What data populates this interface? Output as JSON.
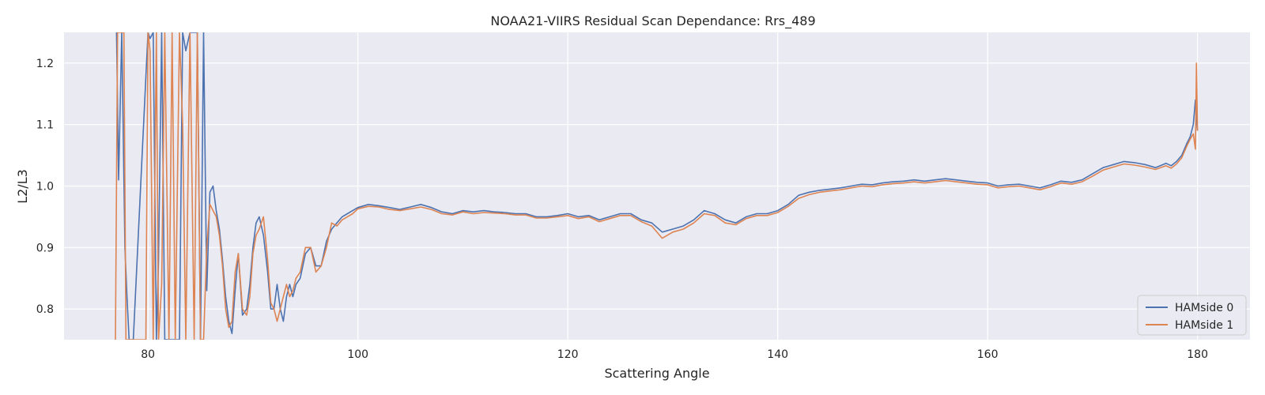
{
  "chart_data": {
    "type": "line",
    "title": "NOAA21-VIIRS Residual Scan Dependance: Rrs_489",
    "xlabel": "Scattering Angle",
    "ylabel": "L2/L3",
    "xlim": [
      72,
      185
    ],
    "ylim": [
      0.75,
      1.25
    ],
    "xticks": [
      80,
      100,
      120,
      140,
      160,
      180
    ],
    "yticks": [
      0.8,
      0.9,
      1.0,
      1.1,
      1.2
    ],
    "grid": true,
    "legend_position": "lower-right",
    "colors": {
      "plot_bg": "#eaeaf2",
      "grid": "#ffffff"
    },
    "series": [
      {
        "name": "HAMside 0",
        "color": "#4c72b0",
        "x": [
          77.0,
          77.2,
          77.5,
          77.8,
          78.0,
          78.2,
          78.4,
          78.6,
          80.0,
          80.2,
          80.5,
          80.8,
          81.0,
          81.3,
          81.6,
          82.0,
          82.3,
          82.6,
          83.0,
          83.3,
          83.6,
          84.0,
          84.4,
          84.7,
          85.0,
          85.3,
          85.6,
          85.9,
          86.2,
          86.5,
          86.8,
          87.1,
          87.4,
          87.7,
          88.0,
          88.3,
          88.6,
          89.0,
          89.4,
          89.7,
          90.0,
          90.3,
          90.6,
          91.0,
          91.4,
          91.7,
          92.0,
          92.3,
          92.6,
          92.9,
          93.2,
          93.5,
          93.8,
          94.1,
          94.5,
          95.0,
          95.5,
          96.0,
          96.5,
          97.0,
          97.5,
          98.0,
          98.5,
          99.0,
          99.5,
          100.0,
          101.0,
          102.0,
          103.0,
          104.0,
          105.0,
          106.0,
          107.0,
          108.0,
          109.0,
          110.0,
          111.0,
          112.0,
          113.0,
          114.0,
          115.0,
          116.0,
          117.0,
          118.0,
          119.0,
          120.0,
          121.0,
          122.0,
          123.0,
          124.0,
          125.0,
          126.0,
          127.0,
          128.0,
          129.0,
          130.0,
          131.0,
          132.0,
          133.0,
          134.0,
          135.0,
          136.0,
          137.0,
          138.0,
          139.0,
          140.0,
          141.0,
          142.0,
          143.0,
          144.0,
          145.0,
          146.0,
          147.0,
          148.0,
          149.0,
          150.0,
          151.0,
          152.0,
          153.0,
          154.0,
          155.0,
          156.0,
          157.0,
          158.0,
          159.0,
          160.0,
          161.0,
          162.0,
          163.0,
          164.0,
          165.0,
          166.0,
          167.0,
          168.0,
          169.0,
          170.0,
          171.0,
          172.0,
          173.0,
          174.0,
          175.0,
          176.0,
          177.0,
          177.5,
          178.0,
          178.5,
          179.0,
          179.3,
          179.6,
          179.8,
          179.9,
          180.0
        ],
        "y": [
          1.25,
          1.01,
          1.25,
          0.9,
          0.82,
          0.75,
          0.75,
          0.75,
          1.25,
          1.24,
          1.25,
          0.75,
          0.88,
          1.25,
          0.75,
          0.75,
          0.75,
          0.75,
          0.75,
          1.25,
          1.22,
          1.25,
          1.25,
          1.25,
          0.75,
          1.25,
          0.83,
          0.99,
          1.0,
          0.96,
          0.93,
          0.88,
          0.82,
          0.78,
          0.76,
          0.83,
          0.89,
          0.79,
          0.8,
          0.84,
          0.9,
          0.94,
          0.95,
          0.92,
          0.86,
          0.8,
          0.8,
          0.84,
          0.8,
          0.78,
          0.82,
          0.84,
          0.82,
          0.84,
          0.85,
          0.89,
          0.9,
          0.87,
          0.87,
          0.91,
          0.93,
          0.94,
          0.95,
          0.955,
          0.96,
          0.965,
          0.97,
          0.968,
          0.965,
          0.962,
          0.966,
          0.97,
          0.965,
          0.958,
          0.955,
          0.96,
          0.958,
          0.96,
          0.958,
          0.957,
          0.955,
          0.955,
          0.95,
          0.95,
          0.952,
          0.955,
          0.95,
          0.952,
          0.945,
          0.95,
          0.955,
          0.955,
          0.945,
          0.94,
          0.925,
          0.93,
          0.935,
          0.945,
          0.96,
          0.955,
          0.945,
          0.94,
          0.95,
          0.955,
          0.955,
          0.96,
          0.97,
          0.985,
          0.99,
          0.993,
          0.995,
          0.997,
          1.0,
          1.003,
          1.002,
          1.005,
          1.007,
          1.008,
          1.01,
          1.008,
          1.01,
          1.012,
          1.01,
          1.008,
          1.006,
          1.005,
          1.0,
          1.002,
          1.003,
          1.0,
          0.997,
          1.002,
          1.008,
          1.006,
          1.01,
          1.02,
          1.03,
          1.035,
          1.04,
          1.038,
          1.035,
          1.03,
          1.037,
          1.033,
          1.04,
          1.05,
          1.07,
          1.08,
          1.1,
          1.14,
          1.11,
          1.09
        ]
      },
      {
        "name": "HAMside 1",
        "color": "#dd8452",
        "x": [
          76.9,
          77.1,
          77.4,
          77.7,
          77.9,
          78.1,
          78.3,
          79.8,
          80.0,
          80.2,
          80.5,
          80.8,
          81.0,
          81.3,
          81.6,
          82.0,
          82.3,
          82.6,
          83.0,
          83.3,
          83.6,
          84.0,
          84.4,
          84.7,
          85.0,
          85.3,
          85.6,
          85.9,
          86.2,
          86.5,
          86.8,
          87.1,
          87.4,
          87.7,
          88.0,
          88.3,
          88.6,
          89.0,
          89.4,
          89.7,
          90.0,
          90.3,
          90.6,
          91.0,
          91.4,
          91.7,
          92.0,
          92.3,
          92.6,
          92.9,
          93.2,
          93.5,
          93.8,
          94.1,
          94.5,
          95.0,
          95.5,
          96.0,
          96.5,
          97.0,
          97.5,
          98.0,
          98.5,
          99.0,
          99.5,
          100.0,
          101.0,
          102.0,
          103.0,
          104.0,
          105.0,
          106.0,
          107.0,
          108.0,
          109.0,
          110.0,
          111.0,
          112.0,
          113.0,
          114.0,
          115.0,
          116.0,
          117.0,
          118.0,
          119.0,
          120.0,
          121.0,
          122.0,
          123.0,
          124.0,
          125.0,
          126.0,
          127.0,
          128.0,
          129.0,
          130.0,
          131.0,
          132.0,
          133.0,
          134.0,
          135.0,
          136.0,
          137.0,
          138.0,
          139.0,
          140.0,
          141.0,
          142.0,
          143.0,
          144.0,
          145.0,
          146.0,
          147.0,
          148.0,
          149.0,
          150.0,
          151.0,
          152.0,
          153.0,
          154.0,
          155.0,
          156.0,
          157.0,
          158.0,
          159.0,
          160.0,
          161.0,
          162.0,
          163.0,
          164.0,
          165.0,
          166.0,
          167.0,
          168.0,
          169.0,
          170.0,
          171.0,
          172.0,
          173.0,
          174.0,
          175.0,
          176.0,
          177.0,
          177.5,
          178.0,
          178.5,
          179.0,
          179.3,
          179.6,
          179.8,
          179.9,
          180.0
        ],
        "y": [
          0.75,
          1.25,
          1.25,
          1.25,
          0.75,
          0.75,
          0.75,
          0.75,
          1.25,
          1.22,
          0.75,
          1.25,
          0.75,
          0.84,
          1.25,
          0.75,
          1.25,
          0.75,
          1.25,
          1.1,
          0.75,
          1.25,
          0.75,
          1.25,
          0.75,
          0.75,
          0.9,
          0.97,
          0.96,
          0.95,
          0.92,
          0.87,
          0.8,
          0.77,
          0.78,
          0.86,
          0.89,
          0.8,
          0.79,
          0.82,
          0.89,
          0.92,
          0.93,
          0.95,
          0.88,
          0.81,
          0.8,
          0.78,
          0.8,
          0.82,
          0.84,
          0.82,
          0.83,
          0.85,
          0.86,
          0.9,
          0.9,
          0.86,
          0.87,
          0.9,
          0.94,
          0.935,
          0.945,
          0.95,
          0.955,
          0.963,
          0.967,
          0.966,
          0.962,
          0.96,
          0.963,
          0.966,
          0.962,
          0.955,
          0.953,
          0.958,
          0.955,
          0.957,
          0.956,
          0.955,
          0.953,
          0.953,
          0.948,
          0.948,
          0.95,
          0.952,
          0.947,
          0.95,
          0.942,
          0.947,
          0.952,
          0.952,
          0.942,
          0.935,
          0.915,
          0.925,
          0.93,
          0.94,
          0.955,
          0.952,
          0.94,
          0.937,
          0.947,
          0.952,
          0.952,
          0.957,
          0.967,
          0.98,
          0.986,
          0.99,
          0.992,
          0.994,
          0.997,
          1.0,
          0.999,
          1.002,
          1.004,
          1.005,
          1.007,
          1.005,
          1.007,
          1.009,
          1.007,
          1.005,
          1.003,
          1.002,
          0.997,
          0.999,
          1.0,
          0.997,
          0.994,
          0.999,
          1.005,
          1.003,
          1.007,
          1.016,
          1.026,
          1.031,
          1.036,
          1.034,
          1.031,
          1.027,
          1.033,
          1.029,
          1.036,
          1.046,
          1.066,
          1.076,
          1.085,
          1.06,
          1.2,
          1.09
        ]
      }
    ]
  }
}
